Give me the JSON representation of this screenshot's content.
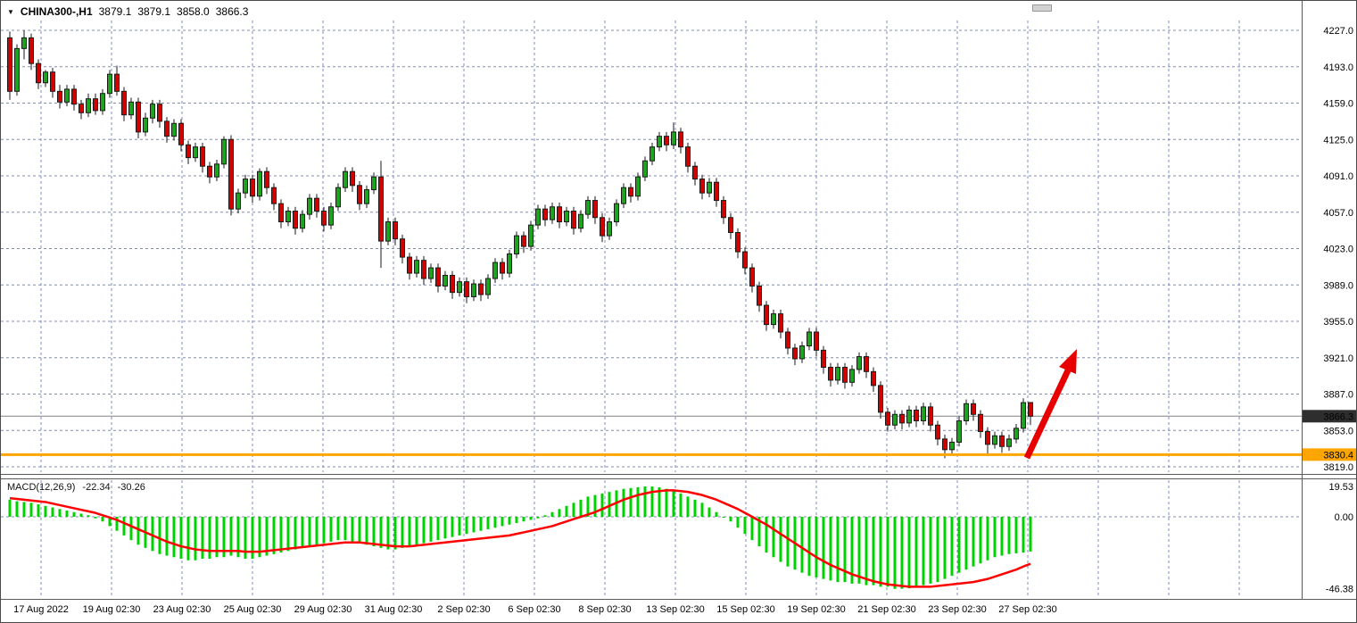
{
  "quote_bar": {
    "dropdown_icon": "▼",
    "symbol": "CHINA300-,H1",
    "open": "3879.1",
    "high": "3879.1",
    "low": "3858.0",
    "close": "3866.3"
  },
  "chart_data": {
    "type": "candlestick+macd",
    "title": "CHINA300-,H1",
    "price_axis": {
      "ticks": [
        4227.0,
        4193.0,
        4159.0,
        4125.0,
        4091.0,
        4057.0,
        4023.0,
        3989.0,
        3955.0,
        3921.0,
        3887.0,
        3853.0,
        3819.0
      ],
      "top_value": 4227.0,
      "bottom_value": 3819.0
    },
    "macd_axis": {
      "ticks": [
        19.53,
        0.0,
        -46.38
      ],
      "top_value": 19.53,
      "bottom_value": -46.38
    },
    "x_axis": {
      "labels": [
        "17 Aug 2022",
        "19 Aug 02:30",
        "23 Aug 02:30",
        "25 Aug 02:30",
        "29 Aug 02:30",
        "31 Aug 02:30",
        "2 Sep 02:30",
        "6 Sep 02:30",
        "8 Sep 02:30",
        "13 Sep 02:30",
        "15 Sep 02:30",
        "19 Sep 02:30",
        "21 Sep 02:30",
        "23 Sep 02:30",
        "27 Sep 02:30"
      ],
      "tick_x": [
        45,
        124,
        203,
        282,
        361,
        440,
        519,
        598,
        677,
        756,
        835,
        914,
        993,
        1072,
        1151
      ],
      "extra_gridline_x": [
        1230,
        1309,
        1388
      ]
    },
    "levels": {
      "current_price": 3866.3,
      "current_label": "3866.3",
      "current_tag_color": "#2e2e2e",
      "support_price": 3830.4,
      "support_label": "3830.4",
      "support_color": "#FFA500"
    },
    "colors": {
      "up": "#1CA51C",
      "down": "#D40000",
      "outline": "#1a1a1a",
      "grid": "#7D8DC1",
      "hist": "#00D200",
      "signal": "#FF0000",
      "arrow": "#E80000",
      "bid_line": "#808080"
    },
    "candles": [
      [
        4220,
        4226,
        4162,
        4170
      ],
      [
        4170,
        4214,
        4166,
        4210
      ],
      [
        4210,
        4227,
        4200,
        4220
      ],
      [
        4220,
        4224,
        4190,
        4196
      ],
      [
        4196,
        4200,
        4172,
        4178
      ],
      [
        4178,
        4190,
        4174,
        4188
      ],
      [
        4188,
        4192,
        4164,
        4170
      ],
      [
        4170,
        4176,
        4154,
        4160
      ],
      [
        4160,
        4176,
        4156,
        4172
      ],
      [
        4172,
        4176,
        4152,
        4158
      ],
      [
        4158,
        4162,
        4144,
        4150
      ],
      [
        4150,
        4168,
        4146,
        4163
      ],
      [
        4163,
        4168,
        4148,
        4152
      ],
      [
        4152,
        4172,
        4148,
        4168
      ],
      [
        4168,
        4190,
        4164,
        4186
      ],
      [
        4186,
        4194,
        4166,
        4170
      ],
      [
        4170,
        4174,
        4142,
        4148
      ],
      [
        4148,
        4164,
        4144,
        4160
      ],
      [
        4160,
        4164,
        4126,
        4132
      ],
      [
        4132,
        4150,
        4128,
        4145
      ],
      [
        4145,
        4162,
        4140,
        4158
      ],
      [
        4158,
        4162,
        4136,
        4142
      ],
      [
        4142,
        4146,
        4122,
        4128
      ],
      [
        4128,
        4144,
        4124,
        4140
      ],
      [
        4140,
        4144,
        4114,
        4120
      ],
      [
        4120,
        4124,
        4102,
        4108
      ],
      [
        4108,
        4122,
        4104,
        4118
      ],
      [
        4118,
        4122,
        4094,
        4100
      ],
      [
        4100,
        4104,
        4084,
        4090
      ],
      [
        4090,
        4106,
        4086,
        4102
      ],
      [
        4102,
        4128,
        4098,
        4125
      ],
      [
        4125,
        4129,
        4054,
        4060
      ],
      [
        4060,
        4079,
        4056,
        4075
      ],
      [
        4075,
        4092,
        4070,
        4088
      ],
      [
        4088,
        4092,
        4066,
        4072
      ],
      [
        4072,
        4098,
        4068,
        4095
      ],
      [
        4095,
        4099,
        4074,
        4080
      ],
      [
        4080,
        4084,
        4059,
        4065
      ],
      [
        4065,
        4069,
        4042,
        4048
      ],
      [
        4048,
        4062,
        4044,
        4058
      ],
      [
        4058,
        4062,
        4036,
        4042
      ],
      [
        4042,
        4059,
        4038,
        4055
      ],
      [
        4055,
        4074,
        4050,
        4070
      ],
      [
        4070,
        4074,
        4052,
        4058
      ],
      [
        4058,
        4062,
        4039,
        4045
      ],
      [
        4045,
        4066,
        4041,
        4062
      ],
      [
        4062,
        4084,
        4058,
        4080
      ],
      [
        4080,
        4099,
        4076,
        4095
      ],
      [
        4095,
        4099,
        4076,
        4082
      ],
      [
        4082,
        4086,
        4059,
        4065
      ],
      [
        4065,
        4082,
        4061,
        4078
      ],
      [
        4078,
        4094,
        4074,
        4090
      ],
      [
        4090,
        4105,
        4005,
        4030
      ],
      [
        4030,
        4052,
        4026,
        4048
      ],
      [
        4048,
        4052,
        4026,
        4032
      ],
      [
        4032,
        4036,
        4009,
        4015
      ],
      [
        4015,
        4019,
        3994,
        4000
      ],
      [
        4000,
        4016,
        3996,
        4012
      ],
      [
        4012,
        4016,
        3989,
        3995
      ],
      [
        3995,
        4009,
        3991,
        4005
      ],
      [
        4005,
        4009,
        3982,
        3988
      ],
      [
        3988,
        4002,
        3984,
        3998
      ],
      [
        3998,
        4002,
        3976,
        3982
      ],
      [
        3982,
        3996,
        3978,
        3992
      ],
      [
        3992,
        3996,
        3972,
        3978
      ],
      [
        3978,
        3994,
        3974,
        3990
      ],
      [
        3990,
        3994,
        3974,
        3980
      ],
      [
        3980,
        3999,
        3976,
        3995
      ],
      [
        3995,
        4014,
        3991,
        4010
      ],
      [
        4010,
        4014,
        3994,
        4000
      ],
      [
        4000,
        4022,
        3996,
        4018
      ],
      [
        4018,
        4039,
        4014,
        4035
      ],
      [
        4035,
        4039,
        4019,
        4025
      ],
      [
        4025,
        4049,
        4021,
        4045
      ],
      [
        4045,
        4064,
        4041,
        4060
      ],
      [
        4060,
        4064,
        4044,
        4050
      ],
      [
        4050,
        4066,
        4046,
        4062
      ],
      [
        4062,
        4066,
        4042,
        4048
      ],
      [
        4048,
        4062,
        4044,
        4058
      ],
      [
        4058,
        4062,
        4036,
        4042
      ],
      [
        4042,
        4059,
        4038,
        4055
      ],
      [
        4055,
        4072,
        4051,
        4068
      ],
      [
        4068,
        4072,
        4046,
        4052
      ],
      [
        4052,
        4056,
        4029,
        4035
      ],
      [
        4035,
        4052,
        4031,
        4048
      ],
      [
        4048,
        4069,
        4044,
        4065
      ],
      [
        4065,
        4084,
        4061,
        4080
      ],
      [
        4080,
        4084,
        4066,
        4072
      ],
      [
        4072,
        4094,
        4068,
        4090
      ],
      [
        4090,
        4109,
        4086,
        4105
      ],
      [
        4105,
        4122,
        4101,
        4118
      ],
      [
        4118,
        4132,
        4114,
        4128
      ],
      [
        4128,
        4132,
        4114,
        4120
      ],
      [
        4120,
        4141,
        4116,
        4132
      ],
      [
        4132,
        4136,
        4112,
        4118
      ],
      [
        4118,
        4122,
        4094,
        4100
      ],
      [
        4100,
        4104,
        4082,
        4088
      ],
      [
        4088,
        4092,
        4069,
        4075
      ],
      [
        4075,
        4089,
        4071,
        4085
      ],
      [
        4085,
        4089,
        4062,
        4068
      ],
      [
        4068,
        4072,
        4046,
        4052
      ],
      [
        4052,
        4056,
        4032,
        4038
      ],
      [
        4038,
        4042,
        4014,
        4020
      ],
      [
        4020,
        4024,
        3999,
        4005
      ],
      [
        4005,
        4009,
        3982,
        3988
      ],
      [
        3988,
        3992,
        3964,
        3970
      ],
      [
        3970,
        3974,
        3946,
        3952
      ],
      [
        3952,
        3966,
        3948,
        3962
      ],
      [
        3962,
        3966,
        3939,
        3945
      ],
      [
        3945,
        3949,
        3924,
        3930
      ],
      [
        3930,
        3934,
        3914,
        3920
      ],
      [
        3920,
        3936,
        3916,
        3932
      ],
      [
        3932,
        3949,
        3928,
        3945
      ],
      [
        3945,
        3949,
        3922,
        3928
      ],
      [
        3928,
        3932,
        3906,
        3912
      ],
      [
        3912,
        3916,
        3894,
        3900
      ],
      [
        3900,
        3916,
        3896,
        3912
      ],
      [
        3912,
        3916,
        3892,
        3898
      ],
      [
        3898,
        3914,
        3894,
        3910
      ],
      [
        3910,
        3926,
        3906,
        3922
      ],
      [
        3922,
        3926,
        3902,
        3908
      ],
      [
        3908,
        3912,
        3889,
        3895
      ],
      [
        3895,
        3899,
        3864,
        3870
      ],
      [
        3870,
        3874,
        3852,
        3858
      ],
      [
        3858,
        3872,
        3854,
        3868
      ],
      [
        3868,
        3872,
        3854,
        3860
      ],
      [
        3860,
        3876,
        3856,
        3872
      ],
      [
        3872,
        3876,
        3856,
        3862
      ],
      [
        3862,
        3879,
        3858,
        3875
      ],
      [
        3875,
        3879,
        3852,
        3858
      ],
      [
        3858,
        3862,
        3839,
        3845
      ],
      [
        3845,
        3849,
        3827,
        3835
      ],
      [
        3835,
        3846,
        3831,
        3842
      ],
      [
        3842,
        3866,
        3838,
        3862
      ],
      [
        3862,
        3882,
        3858,
        3878
      ],
      [
        3878,
        3882,
        3862,
        3868
      ],
      [
        3868,
        3872,
        3846,
        3852
      ],
      [
        3852,
        3856,
        3829,
        3840
      ],
      [
        3840,
        3852,
        3836,
        3848
      ],
      [
        3848,
        3852,
        3832,
        3838
      ],
      [
        3838,
        3849,
        3834,
        3845
      ],
      [
        3845,
        3859,
        3841,
        3855
      ],
      [
        3855,
        3883,
        3851,
        3879
      ],
      [
        3879.1,
        3879.1,
        3858.0,
        3866.3
      ]
    ],
    "macd": {
      "label": "MACD(12,26,9)",
      "main_value": "-22.34",
      "signal_value": "-30.26",
      "histogram": [
        11,
        10,
        9.5,
        9,
        8,
        7,
        6,
        5,
        4,
        3,
        2,
        1,
        -1,
        -3,
        -6,
        -9,
        -12,
        -15,
        -18,
        -20,
        -22,
        -24,
        -25,
        -26,
        -27,
        -28,
        -28,
        -27,
        -27,
        -26,
        -26,
        -25,
        -26,
        -27,
        -27,
        -26,
        -25,
        -24,
        -23,
        -22,
        -21,
        -20,
        -19,
        -18,
        -17,
        -16,
        -15,
        -15,
        -16,
        -17,
        -18,
        -19,
        -20,
        -21,
        -21,
        -20,
        -19,
        -18,
        -17,
        -16,
        -15,
        -14,
        -13,
        -12,
        -11,
        -10,
        -9,
        -8,
        -7,
        -6,
        -5,
        -4,
        -3,
        -2,
        -1,
        1,
        3,
        5,
        7,
        9,
        11,
        13,
        14,
        15,
        16,
        17,
        18,
        18.5,
        19,
        19.53,
        19.5,
        19,
        18,
        17,
        15,
        13,
        11,
        9,
        6,
        3,
        0,
        -3,
        -7,
        -11,
        -15,
        -19,
        -23,
        -26,
        -29,
        -32,
        -34,
        -36,
        -38,
        -39,
        -40,
        -41,
        -42,
        -42,
        -43,
        -43,
        -44,
        -44,
        -45,
        -45,
        -46.38,
        -46.3,
        -46,
        -45,
        -44,
        -43,
        -42,
        -40,
        -38,
        -36,
        -34,
        -32,
        -30,
        -28,
        -26,
        -25,
        -24,
        -23.5,
        -23,
        -22.34
      ],
      "signal": [
        12,
        11.5,
        11,
        10.5,
        10,
        9.5,
        8.5,
        7.5,
        6.5,
        5.5,
        4.5,
        3.5,
        2.5,
        1,
        -0.5,
        -2,
        -4,
        -6,
        -8,
        -10,
        -12,
        -14,
        -16,
        -17.5,
        -19,
        -20,
        -21,
        -21.5,
        -22,
        -22,
        -22,
        -22,
        -22,
        -22.5,
        -22.5,
        -22.5,
        -22,
        -21.5,
        -21,
        -20.5,
        -20,
        -19.5,
        -19,
        -18.5,
        -18,
        -17.5,
        -17,
        -16.5,
        -16.5,
        -16.5,
        -17,
        -17.5,
        -18,
        -18.5,
        -19,
        -19,
        -19,
        -18.5,
        -18,
        -17.5,
        -17,
        -16.5,
        -16,
        -15.5,
        -15,
        -14.5,
        -14,
        -13.5,
        -13,
        -12.5,
        -12,
        -11,
        -10,
        -9,
        -8,
        -7,
        -6,
        -4.5,
        -3,
        -1.5,
        0,
        1.5,
        3,
        5,
        7,
        9,
        11,
        12.5,
        14,
        15,
        16,
        16.5,
        17,
        17,
        16.5,
        16,
        15,
        14,
        12.5,
        11,
        9,
        7,
        5,
        2.5,
        0,
        -2.5,
        -5,
        -8,
        -11,
        -14,
        -17,
        -20,
        -23,
        -26,
        -28.5,
        -31,
        -33,
        -35,
        -37,
        -38.5,
        -40,
        -41.5,
        -42.5,
        -43.5,
        -44,
        -44.5,
        -45,
        -45,
        -45,
        -45,
        -44.5,
        -44,
        -43.5,
        -43,
        -42.5,
        -42,
        -41,
        -40,
        -38.5,
        -37,
        -35.5,
        -34,
        -32,
        -30.26
      ]
    },
    "annotation_arrow": {
      "tail": [
        1150,
        512
      ],
      "line_end": [
        1196,
        414
      ],
      "head": [
        [
          1206,
          390
        ],
        [
          1205,
          418
        ],
        [
          1186,
          410
        ]
      ]
    }
  }
}
